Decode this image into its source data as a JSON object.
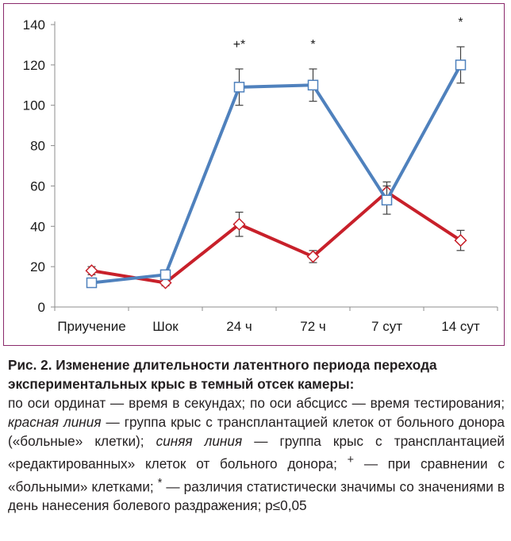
{
  "chart_data": {
    "type": "line",
    "categories": [
      "Приучение",
      "Шок",
      "24 ч",
      "72 ч",
      "7 сут",
      "14 сут"
    ],
    "ylim": [
      0,
      140
    ],
    "yticks": [
      0,
      20,
      40,
      60,
      80,
      100,
      120,
      140
    ],
    "grid": false,
    "legend": "none",
    "series": [
      {
        "color": "#c8202a",
        "marker": "diamond",
        "values": [
          18,
          12,
          41,
          25,
          57,
          33
        ],
        "errors": [
          2,
          1.5,
          6,
          3,
          5,
          5
        ]
      },
      {
        "color": "#4f81bd",
        "marker": "square",
        "values": [
          12,
          16,
          109,
          110,
          53,
          120
        ],
        "errors": [
          1,
          1.5,
          9,
          8,
          7,
          9
        ]
      }
    ],
    "annotations": [
      {
        "category": "24 ч",
        "text": "+*"
      },
      {
        "category": "72 ч",
        "text": "*"
      },
      {
        "category": "14 сут",
        "text": "*"
      }
    ]
  },
  "caption": {
    "title": "Рис. 2. Изменение длительности латентного периода перехода экспериментальных крыс в темный отсек камеры:",
    "text_1": "по оси ординат — время в секундах; по оси абсцисс — время тестирования; ",
    "red_line": "красная линия",
    "text_2": " — группа крыс с трансплантацией клеток от больного донора («больные» клетки); ",
    "blue_line": "синяя линия",
    "text_3": " — группа крыс с трансплантацией «редактированных» клеток от больного донора; ",
    "plus_mark": "+",
    "text_4": " — при сравнении с «больными» клетками; ",
    "star_mark": "*",
    "text_5": " — различия статистически значимы со значениями в день нанесения болевого раздражения;  p≤0,05"
  }
}
